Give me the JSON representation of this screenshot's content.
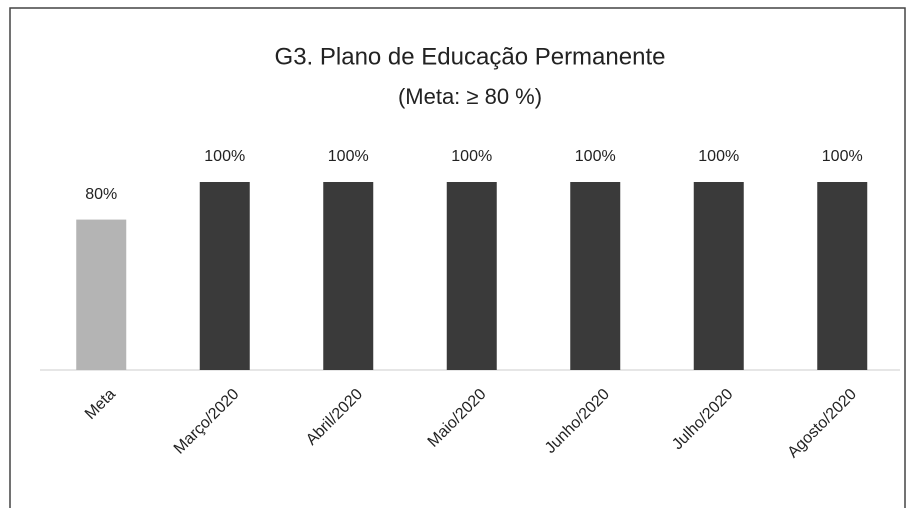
{
  "chart_data": {
    "type": "bar",
    "title": "G3. Plano de Educação Permanente",
    "subtitle": "(Meta: ≥ 80 %)",
    "categories": [
      "Meta",
      "Março/2020",
      "Abril/2020",
      "Maio/2020",
      "Junho/2020",
      "Julho/2020",
      "Agosto/2020"
    ],
    "values": [
      80,
      100,
      100,
      100,
      100,
      100,
      100
    ],
    "value_labels": [
      "80%",
      "100%",
      "100%",
      "100%",
      "100%",
      "100%",
      "100%"
    ],
    "colors": [
      "#b4b4b4",
      "#3a3a3a",
      "#3a3a3a",
      "#3a3a3a",
      "#3a3a3a",
      "#3a3a3a",
      "#3a3a3a"
    ]
  }
}
